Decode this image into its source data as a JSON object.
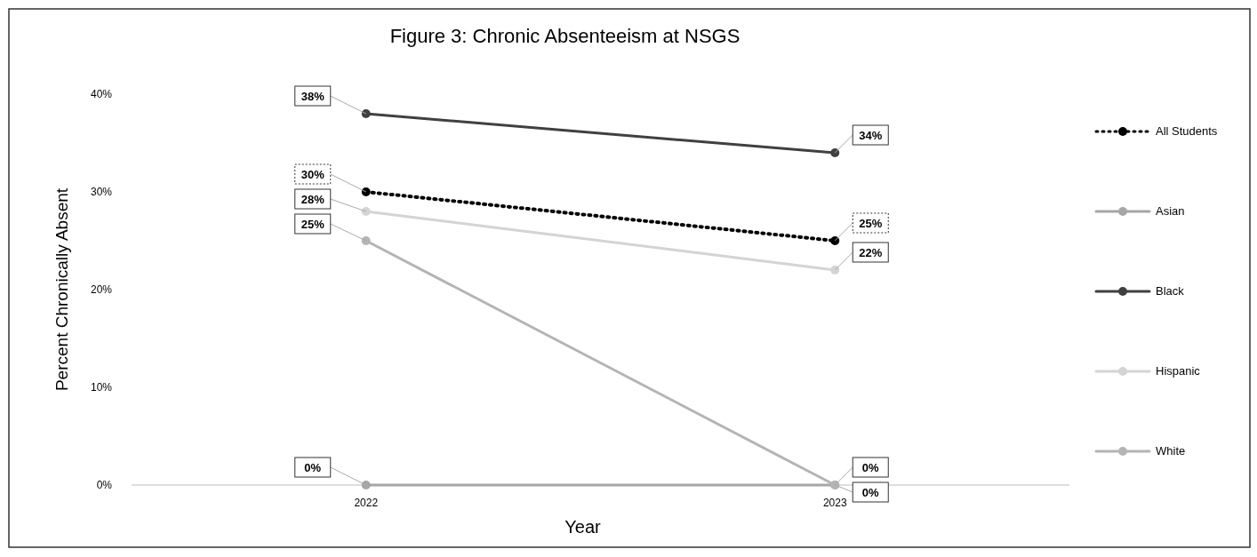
{
  "chart_data": {
    "type": "line",
    "title": "Figure 3: Chronic Absenteeism at NSGS",
    "xlabel": "Year",
    "ylabel": "Percent Chronically Absent",
    "categories": [
      "2022",
      "2023"
    ],
    "series": [
      {
        "name": "All Students",
        "color": "#000000",
        "values": [
          30,
          25
        ],
        "value_labels": [
          "30%",
          "25%"
        ],
        "line_style": "dotted"
      },
      {
        "name": "Asian",
        "color": "#a6a6a6",
        "values": [
          0,
          0
        ],
        "value_labels": [
          "0%",
          "0%"
        ],
        "line_style": "solid"
      },
      {
        "name": "Black",
        "color": "#404040",
        "values": [
          38,
          34
        ],
        "value_labels": [
          "38%",
          "34%"
        ],
        "line_style": "solid"
      },
      {
        "name": "Hispanic",
        "color": "#d4d4d4",
        "values": [
          28,
          22
        ],
        "value_labels": [
          "28%",
          "22%"
        ],
        "line_style": "solid"
      },
      {
        "name": "White",
        "color": "#b4b4b4",
        "values": [
          25,
          0
        ],
        "value_labels": [
          "25%",
          "0%"
        ],
        "line_style": "solid"
      }
    ],
    "ylim": [
      0,
      40
    ],
    "yticks": [
      {
        "value": 0,
        "label": "0%"
      },
      {
        "value": 10,
        "label": "10%"
      },
      {
        "value": 20,
        "label": "20%"
      },
      {
        "value": 30,
        "label": "30%"
      },
      {
        "value": 40,
        "label": "40%"
      }
    ],
    "grid": false,
    "legend": "right",
    "marker": "circle"
  }
}
